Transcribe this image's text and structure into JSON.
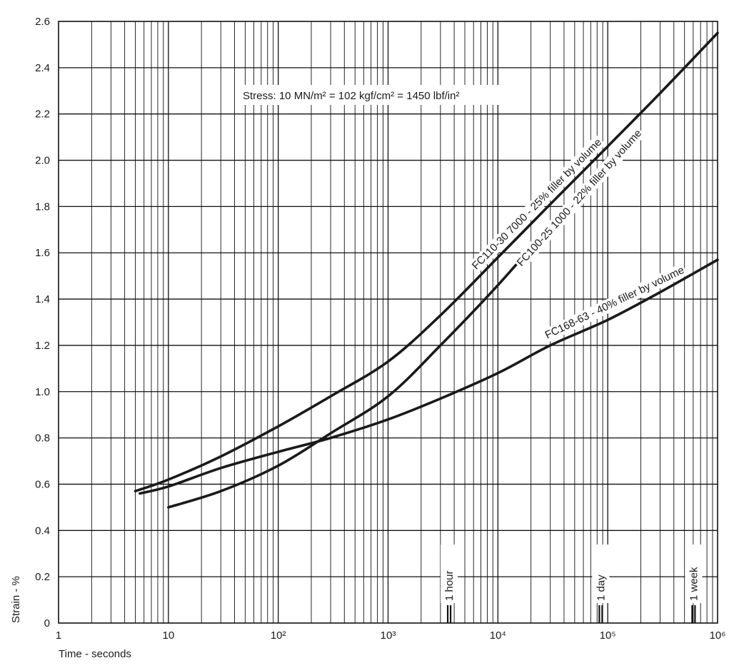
{
  "chart_data": {
    "type": "line",
    "title": "",
    "annotation": {
      "stress_text": "Stress: 10 MN/m² = 102 kgf/cm² = 1450 lbf/in²"
    },
    "xlabel": "Time - seconds",
    "ylabel": "Strain - %",
    "x_scale": "log",
    "xlim": [
      1,
      1000000
    ],
    "ylim": [
      0,
      2.6
    ],
    "grid": true,
    "x_tick_labels": [
      "1",
      "10",
      "10²",
      "10³",
      "10⁴",
      "10⁵",
      "10⁶"
    ],
    "x_tick_values": [
      1,
      10,
      100,
      1000,
      10000,
      100000,
      1000000
    ],
    "y_tick_labels": [
      "0",
      "0.2",
      "0.4",
      "0.6",
      "0.8",
      "1.0",
      "1.2",
      "1.4",
      "1.6",
      "1.8",
      "2.0",
      "2.2",
      "2.4",
      "2.6"
    ],
    "y_tick_values": [
      0,
      0.2,
      0.4,
      0.6,
      0.8,
      1.0,
      1.2,
      1.4,
      1.6,
      1.8,
      2.0,
      2.2,
      2.4,
      2.6
    ],
    "time_markers": [
      {
        "label": "1 hour",
        "x": 3600
      },
      {
        "label": "1 day",
        "x": 86400
      },
      {
        "label": "1 week",
        "x": 604800
      }
    ],
    "series": [
      {
        "name": "FC110-30 7000 - 25% filler by volume",
        "x": [
          5,
          10,
          30,
          100,
          300,
          1000,
          3000,
          10000,
          30000,
          100000,
          300000,
          1000000
        ],
        "y": [
          0.57,
          0.62,
          0.72,
          0.85,
          0.98,
          1.13,
          1.33,
          1.58,
          1.81,
          2.06,
          2.29,
          2.55
        ]
      },
      {
        "name": "FC100-25 1000 - 22% filler by volume",
        "x": [
          10,
          30,
          100,
          300,
          1000,
          3000,
          10000,
          30000,
          100000
        ],
        "y": [
          0.5,
          0.57,
          0.68,
          0.82,
          0.98,
          1.2,
          1.46,
          1.72,
          2.01
        ]
      },
      {
        "name": "FC168-63 - 40% filler by volume",
        "x": [
          5.5,
          10,
          30,
          100,
          300,
          1000,
          3000,
          10000,
          30000,
          100000,
          300000,
          1000000
        ],
        "y": [
          0.56,
          0.59,
          0.67,
          0.74,
          0.8,
          0.88,
          0.97,
          1.08,
          1.2,
          1.31,
          1.43,
          1.57
        ]
      }
    ]
  }
}
